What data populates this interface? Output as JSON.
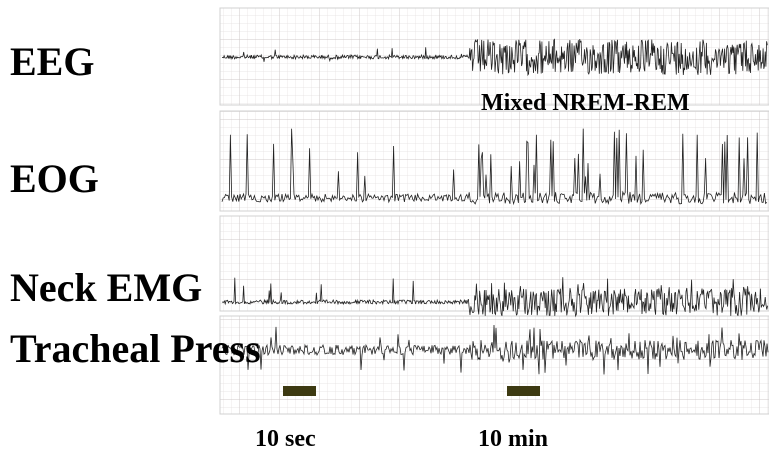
{
  "labels": {
    "eeg": "EEG",
    "eog": "EOG",
    "neck_emg": "Neck EMG",
    "tracheal_press": "Tracheal Press"
  },
  "annotation": "Mixed NREM-REM",
  "scale_bars": [
    {
      "label": "10 sec"
    },
    {
      "label": "10 min"
    }
  ]
}
